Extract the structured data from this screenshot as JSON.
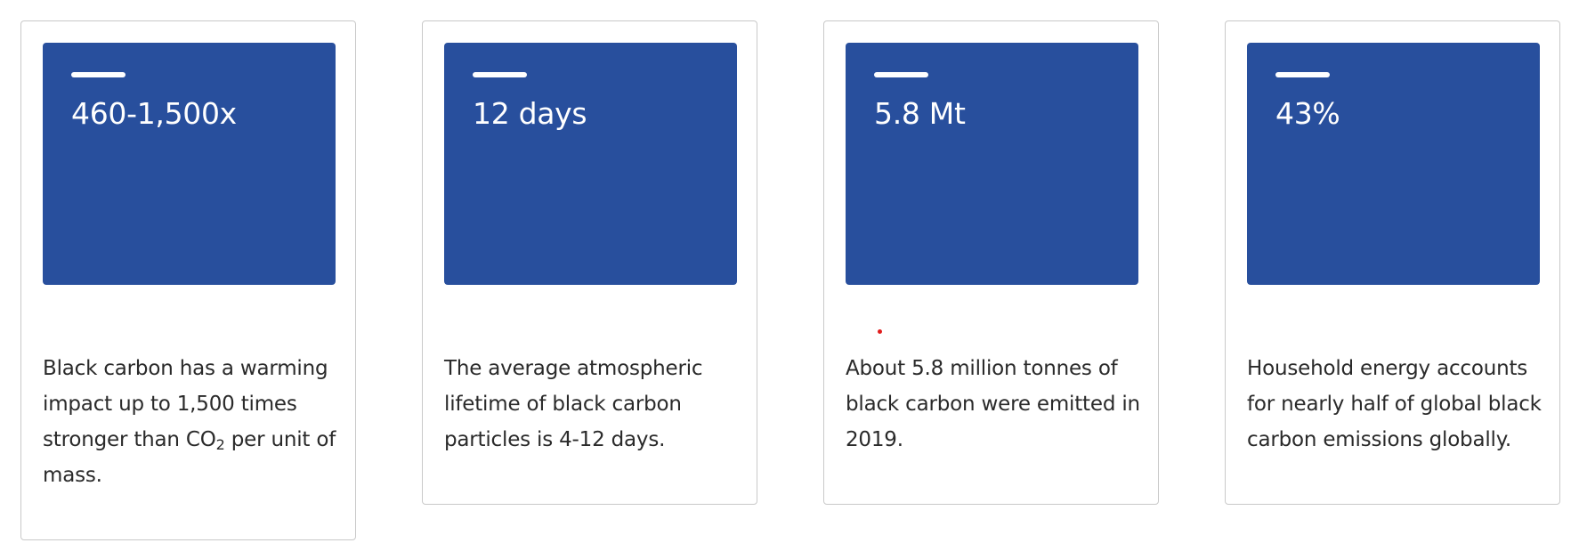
{
  "stat_cards": [
    {
      "value": "460-1,500x",
      "description": {
        "before_sub": "Black carbon has a warming impact up to 1,500 times stronger than CO",
        "sub": "2",
        "after_sub": " per unit of mass."
      }
    },
    {
      "value": "12 days",
      "description": "The average atmospheric lifetime of black carbon particles is 4-12 days."
    },
    {
      "value": "5.8 Mt",
      "description": "About 5.8 million tonnes of black carbon were emitted in 2019."
    },
    {
      "value": "43%",
      "description": "Household energy accounts for nearly half of global black carbon emissions globally."
    }
  ],
  "colors": {
    "stat_box": "#284f9d",
    "card_border": "#c9c9c9",
    "red_dot": "#e11d1d"
  }
}
